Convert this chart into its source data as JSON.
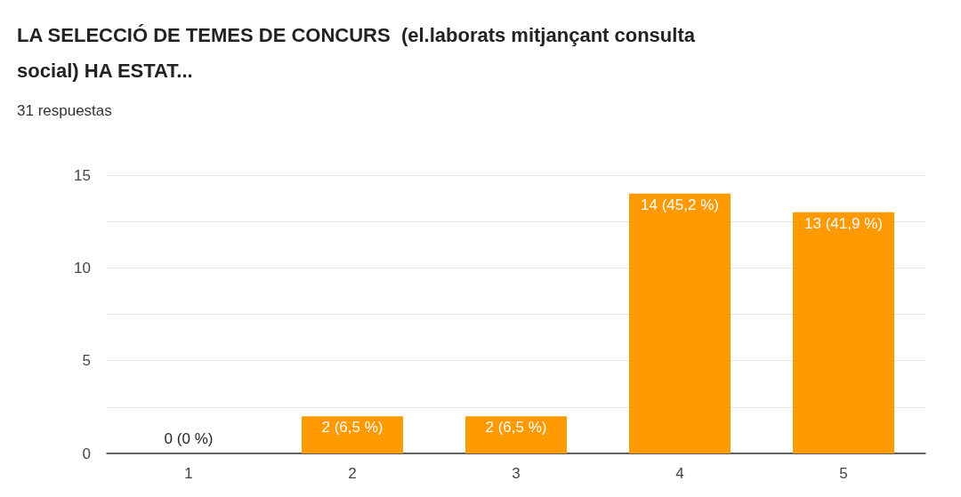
{
  "chart_data": {
    "type": "bar",
    "title": "LA SELECCIÓ DE TEMES DE CONCURS  (el.laborats mitjançant consulta social) HA ESTAT...",
    "subtitle": "31 respuestas",
    "categories": [
      "1",
      "2",
      "3",
      "4",
      "5"
    ],
    "values": [
      0,
      2,
      2,
      14,
      13
    ],
    "value_labels": [
      "0 (0 %)",
      "2 (6,5 %)",
      "2 (6,5 %)",
      "14 (45,2 %)",
      "13 (41,9 %)"
    ],
    "color": "#ff9900",
    "ylim": [
      0,
      15
    ],
    "yticks": [
      0,
      {
        "value": 2.5,
        "label": null
      },
      5,
      {
        "value": 7.5,
        "label": null
      },
      10,
      {
        "value": 12.5,
        "label": null
      },
      15
    ],
    "grid": true
  }
}
